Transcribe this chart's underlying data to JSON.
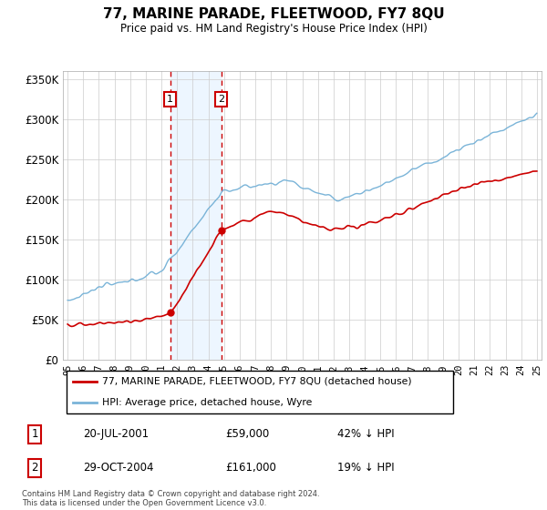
{
  "title": "77, MARINE PARADE, FLEETWOOD, FY7 8QU",
  "subtitle": "Price paid vs. HM Land Registry's House Price Index (HPI)",
  "legend_line1": "77, MARINE PARADE, FLEETWOOD, FY7 8QU (detached house)",
  "legend_line2": "HPI: Average price, detached house, Wyre",
  "sale1_date": "20-JUL-2001",
  "sale1_price": "£59,000",
  "sale1_hpi": "42% ↓ HPI",
  "sale1_year": 2001.55,
  "sale1_value": 59000,
  "sale2_date": "29-OCT-2004",
  "sale2_price": "£161,000",
  "sale2_hpi": "19% ↓ HPI",
  "sale2_year": 2004.83,
  "sale2_value": 161000,
  "footer": "Contains HM Land Registry data © Crown copyright and database right 2024.\nThis data is licensed under the Open Government Licence v3.0.",
  "hpi_color": "#7ab4d8",
  "price_color": "#cc0000",
  "highlight_color": "#ddeeff",
  "ylim": [
    0,
    360000
  ],
  "yticks": [
    0,
    50000,
    100000,
    150000,
    200000,
    250000,
    300000,
    350000
  ],
  "ytick_labels": [
    "£0",
    "£50K",
    "£100K",
    "£150K",
    "£200K",
    "£250K",
    "£300K",
    "£350K"
  ],
  "xlim_start": 1994.7,
  "xlim_end": 2025.3
}
